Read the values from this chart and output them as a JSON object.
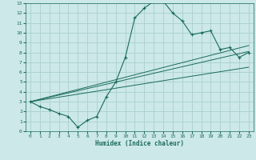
{
  "xlabel": "Humidex (Indice chaleur)",
  "background_color": "#cce8e8",
  "grid_color": "#aacfcf",
  "line_color": "#1a6b5a",
  "xlim": [
    -0.5,
    23.5
  ],
  "ylim": [
    0,
    13
  ],
  "xticks": [
    0,
    1,
    2,
    3,
    4,
    5,
    6,
    7,
    8,
    9,
    10,
    11,
    12,
    13,
    14,
    15,
    16,
    17,
    18,
    19,
    20,
    21,
    22,
    23
  ],
  "yticks": [
    0,
    1,
    2,
    3,
    4,
    5,
    6,
    7,
    8,
    9,
    10,
    11,
    12,
    13
  ],
  "curve1_x": [
    0,
    1,
    2,
    3,
    4,
    5,
    6,
    7,
    8,
    9,
    10,
    11,
    12,
    13,
    14,
    15,
    16,
    17,
    18,
    19,
    20,
    21,
    22,
    23
  ],
  "curve1_y": [
    3,
    2.5,
    2.2,
    1.8,
    1.5,
    0.4,
    1.1,
    1.5,
    3.5,
    5.0,
    7.5,
    11.5,
    12.5,
    13.2,
    13.2,
    12.0,
    11.2,
    9.8,
    10.0,
    10.2,
    8.3,
    8.5,
    7.5,
    8.0
  ],
  "line1_x": [
    0,
    23
  ],
  "line1_y": [
    3.0,
    8.7
  ],
  "line2_x": [
    0,
    23
  ],
  "line2_y": [
    3.0,
    6.5
  ],
  "line3_x": [
    0,
    23
  ],
  "line3_y": [
    3.0,
    8.1
  ]
}
